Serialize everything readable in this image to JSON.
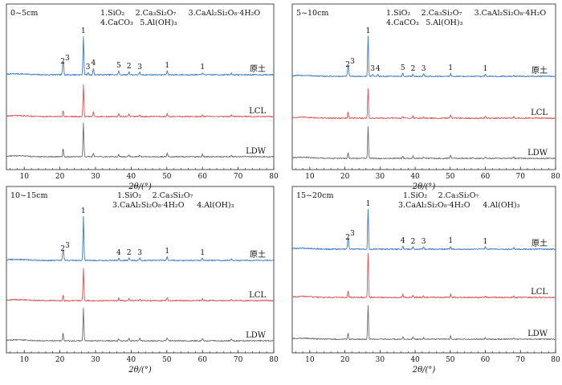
{
  "figure": {
    "x_axis_label": "2θ/(°)",
    "x_ticks": [
      10,
      20,
      30,
      40,
      50,
      60,
      70,
      80
    ],
    "xlim": [
      5,
      80
    ]
  },
  "chart_data": [
    {
      "type": "line",
      "depth": "0~5cm",
      "legend": [
        "1.SiO₂",
        "2.Ca₃Si₂O₇",
        "3.CaAl₂Si₂O₈·4H₂O",
        "4.CaCO₃",
        "5.Al(OH)₃"
      ],
      "series": [
        {
          "name": "原土",
          "color": "#3a78c8",
          "peaks": [
            {
              "x": 20.8,
              "h": 10,
              "label": "2"
            },
            {
              "x": 21.0,
              "h": 12,
              "label": "3"
            },
            {
              "x": 26.6,
              "h": 48,
              "label": "1"
            },
            {
              "x": 27.9,
              "h": 3,
              "label": "3"
            },
            {
              "x": 29.4,
              "h": 8,
              "label": "4"
            },
            {
              "x": 36.5,
              "h": 5,
              "label": "5"
            },
            {
              "x": 39.4,
              "h": 4,
              "label": "2"
            },
            {
              "x": 42.4,
              "h": 3,
              "label": "3"
            },
            {
              "x": 50.1,
              "h": 5,
              "label": "1"
            },
            {
              "x": 60.0,
              "h": 3,
              "label": "1"
            },
            {
              "x": 68.1,
              "h": 2
            }
          ]
        },
        {
          "name": "LCL",
          "color": "#e05050",
          "peaks": [
            {
              "x": 20.9,
              "h": 8
            },
            {
              "x": 26.6,
              "h": 40
            },
            {
              "x": 29.4,
              "h": 6
            },
            {
              "x": 36.5,
              "h": 4
            },
            {
              "x": 39.4,
              "h": 3
            },
            {
              "x": 42.4,
              "h": 2
            },
            {
              "x": 50.1,
              "h": 4
            },
            {
              "x": 60.0,
              "h": 2
            },
            {
              "x": 68.1,
              "h": 2
            }
          ]
        },
        {
          "name": "LDW",
          "color": "#6b6b6b",
          "peaks": [
            {
              "x": 20.9,
              "h": 10
            },
            {
              "x": 26.6,
              "h": 42
            },
            {
              "x": 29.4,
              "h": 4
            },
            {
              "x": 36.5,
              "h": 3
            },
            {
              "x": 39.4,
              "h": 3
            },
            {
              "x": 42.4,
              "h": 2
            },
            {
              "x": 50.1,
              "h": 5
            },
            {
              "x": 60.0,
              "h": 3
            },
            {
              "x": 68.1,
              "h": 2
            }
          ]
        }
      ]
    },
    {
      "type": "line",
      "depth": "5~10cm",
      "legend": [
        "1.SiO₂",
        "2.Ca₃Si₂O₇",
        "3.CaAl₂Si₂O₈·4H₂O",
        "4.CaCO₃",
        "5.Al(OH)₃"
      ],
      "series": [
        {
          "name": "原土",
          "color": "#3a78c8",
          "peaks": [
            {
              "x": 20.8,
              "h": 8,
              "label": "2"
            },
            {
              "x": 21.0,
              "h": 10,
              "label": "3"
            },
            {
              "x": 26.6,
              "h": 50,
              "label": "1"
            },
            {
              "x": 27.9,
              "h": 3,
              "label": "3"
            },
            {
              "x": 29.4,
              "h": 3,
              "label": "4"
            },
            {
              "x": 36.5,
              "h": 4,
              "label": "5"
            },
            {
              "x": 39.4,
              "h": 3,
              "label": "2"
            },
            {
              "x": 42.4,
              "h": 3,
              "label": "3"
            },
            {
              "x": 50.1,
              "h": 4,
              "label": "1"
            },
            {
              "x": 60.0,
              "h": 3,
              "label": "1"
            },
            {
              "x": 68.1,
              "h": 2
            }
          ]
        },
        {
          "name": "LCL",
          "color": "#e05050",
          "peaks": [
            {
              "x": 20.9,
              "h": 8
            },
            {
              "x": 26.6,
              "h": 36
            },
            {
              "x": 36.5,
              "h": 3
            },
            {
              "x": 39.4,
              "h": 3
            },
            {
              "x": 42.4,
              "h": 2
            },
            {
              "x": 50.1,
              "h": 4
            },
            {
              "x": 60.0,
              "h": 2
            },
            {
              "x": 68.1,
              "h": 2
            }
          ]
        },
        {
          "name": "LDW",
          "color": "#6b6b6b",
          "peaks": [
            {
              "x": 20.9,
              "h": 7
            },
            {
              "x": 26.6,
              "h": 40
            },
            {
              "x": 36.5,
              "h": 3
            },
            {
              "x": 39.4,
              "h": 3
            },
            {
              "x": 42.4,
              "h": 2
            },
            {
              "x": 50.1,
              "h": 4
            },
            {
              "x": 60.0,
              "h": 2
            },
            {
              "x": 68.1,
              "h": 2
            }
          ]
        }
      ]
    },
    {
      "type": "line",
      "depth": "10~15cm",
      "legend": [
        "1.SiO₂",
        "2.Ca₃Si₂O₇",
        "3.CaAl₂Si₂O₈·4H₂O",
        "4.Al(OH)₃"
      ],
      "series": [
        {
          "name": "原土",
          "color": "#3a78c8",
          "peaks": [
            {
              "x": 20.8,
              "h": 8,
              "label": "2"
            },
            {
              "x": 21.0,
              "h": 10,
              "label": "3"
            },
            {
              "x": 26.6,
              "h": 55,
              "label": "1"
            },
            {
              "x": 36.5,
              "h": 3,
              "label": "4"
            },
            {
              "x": 39.4,
              "h": 3,
              "label": "2"
            },
            {
              "x": 42.4,
              "h": 3,
              "label": "3"
            },
            {
              "x": 50.1,
              "h": 5,
              "label": "1"
            },
            {
              "x": 60.0,
              "h": 3,
              "label": "1"
            },
            {
              "x": 68.1,
              "h": 2
            }
          ]
        },
        {
          "name": "LCL",
          "color": "#e05050",
          "peaks": [
            {
              "x": 20.9,
              "h": 7
            },
            {
              "x": 26.6,
              "h": 40
            },
            {
              "x": 36.5,
              "h": 3
            },
            {
              "x": 39.4,
              "h": 3
            },
            {
              "x": 42.4,
              "h": 2
            },
            {
              "x": 50.1,
              "h": 4
            },
            {
              "x": 60.0,
              "h": 2
            },
            {
              "x": 68.1,
              "h": 2
            }
          ]
        },
        {
          "name": "LDW",
          "color": "#6b6b6b",
          "peaks": [
            {
              "x": 20.9,
              "h": 10
            },
            {
              "x": 26.6,
              "h": 40
            },
            {
              "x": 36.5,
              "h": 3
            },
            {
              "x": 39.4,
              "h": 3
            },
            {
              "x": 42.4,
              "h": 3
            },
            {
              "x": 50.1,
              "h": 4
            },
            {
              "x": 60.0,
              "h": 3
            },
            {
              "x": 68.1,
              "h": 3
            }
          ]
        }
      ]
    },
    {
      "type": "line",
      "depth": "15~20cm",
      "legend": [
        "1.SiO₂",
        "2.Ca₃Si₂O₇",
        "3.CaAl₂Si₂O₈·4H₂O",
        "4.Al(OH)₃"
      ],
      "series": [
        {
          "name": "原土",
          "color": "#3a78c8",
          "peaks": [
            {
              "x": 20.8,
              "h": 8,
              "label": "2"
            },
            {
              "x": 21.0,
              "h": 11,
              "label": "3"
            },
            {
              "x": 26.6,
              "h": 50,
              "label": "1"
            },
            {
              "x": 36.5,
              "h": 4,
              "label": "4"
            },
            {
              "x": 39.4,
              "h": 3,
              "label": "2"
            },
            {
              "x": 42.4,
              "h": 3,
              "label": "3"
            },
            {
              "x": 50.1,
              "h": 4,
              "label": "1"
            },
            {
              "x": 60.0,
              "h": 3,
              "label": "1"
            },
            {
              "x": 68.1,
              "h": 2
            }
          ]
        },
        {
          "name": "LCL",
          "color": "#e05050",
          "peaks": [
            {
              "x": 20.9,
              "h": 8
            },
            {
              "x": 26.6,
              "h": 55
            },
            {
              "x": 36.5,
              "h": 4
            },
            {
              "x": 39.4,
              "h": 3
            },
            {
              "x": 42.4,
              "h": 2
            },
            {
              "x": 50.1,
              "h": 4
            },
            {
              "x": 60.0,
              "h": 2
            },
            {
              "x": 68.1,
              "h": 2
            }
          ]
        },
        {
          "name": "LDW",
          "color": "#6b6b6b",
          "peaks": [
            {
              "x": 20.9,
              "h": 8
            },
            {
              "x": 26.6,
              "h": 42
            },
            {
              "x": 36.5,
              "h": 3
            },
            {
              "x": 39.4,
              "h": 3
            },
            {
              "x": 42.4,
              "h": 2
            },
            {
              "x": 50.1,
              "h": 4
            },
            {
              "x": 60.0,
              "h": 2
            },
            {
              "x": 68.1,
              "h": 2
            }
          ]
        }
      ]
    }
  ]
}
